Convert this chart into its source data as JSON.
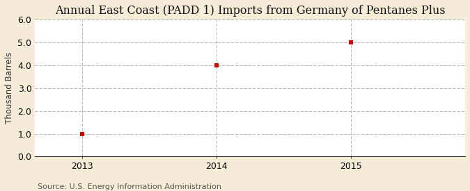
{
  "title": "Annual East Coast (PADD 1) Imports from Germany of Pentanes Plus",
  "ylabel": "Thousand Barrels",
  "source": "Source: U.S. Energy Information Administration",
  "x": [
    2013,
    2014,
    2015
  ],
  "y": [
    1.0,
    4.0,
    5.0
  ],
  "xlim": [
    2012.65,
    2015.85
  ],
  "ylim": [
    0.0,
    6.0
  ],
  "yticks": [
    0.0,
    1.0,
    2.0,
    3.0,
    4.0,
    5.0,
    6.0
  ],
  "xticks": [
    2013,
    2014,
    2015
  ],
  "marker_color": "#cc0000",
  "marker": "s",
  "marker_size": 4,
  "grid_color": "#999999",
  "figure_bg_color": "#f5edd8",
  "plot_bg_color": "#ffffff",
  "title_fontsize": 11.5,
  "label_fontsize": 8.5,
  "tick_fontsize": 9,
  "source_fontsize": 8
}
